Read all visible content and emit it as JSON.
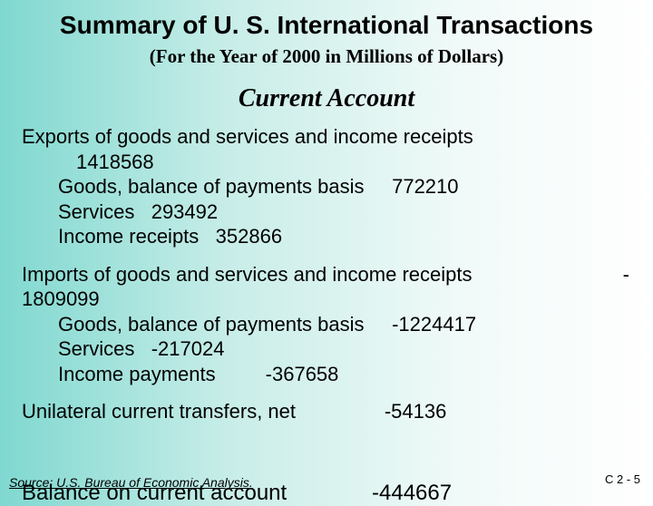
{
  "title": "Summary of U. S. International Transactions",
  "subtitle": "(For the Year of 2000 in Millions of Dollars)",
  "section": "Current Account",
  "exports": {
    "head": "Exports of goods and services and income receipts",
    "total": "1418568",
    "goods_label": "Goods, balance of payments basis",
    "goods_val": "772210",
    "services_label": "Services",
    "services_val": "293492",
    "income_label": "Income receipts",
    "income_val": "352866"
  },
  "imports": {
    "head": "Imports of goods and services and income receipts",
    "neg": "-",
    "total": "1809099",
    "goods_label": "Goods, balance of payments basis",
    "goods_val": "-1224417",
    "services_label": "Services",
    "services_val": "-217024",
    "income_label": "Income payments",
    "income_val": "-367658"
  },
  "unilateral": {
    "label": "Unilateral current transfers, net",
    "val": "-54136"
  },
  "balance": {
    "label": "Balance on current account",
    "val": "-444667"
  },
  "source": "Source: U.S. Bureau of Economic Analysis.",
  "pagenum": "C 2 - 5"
}
